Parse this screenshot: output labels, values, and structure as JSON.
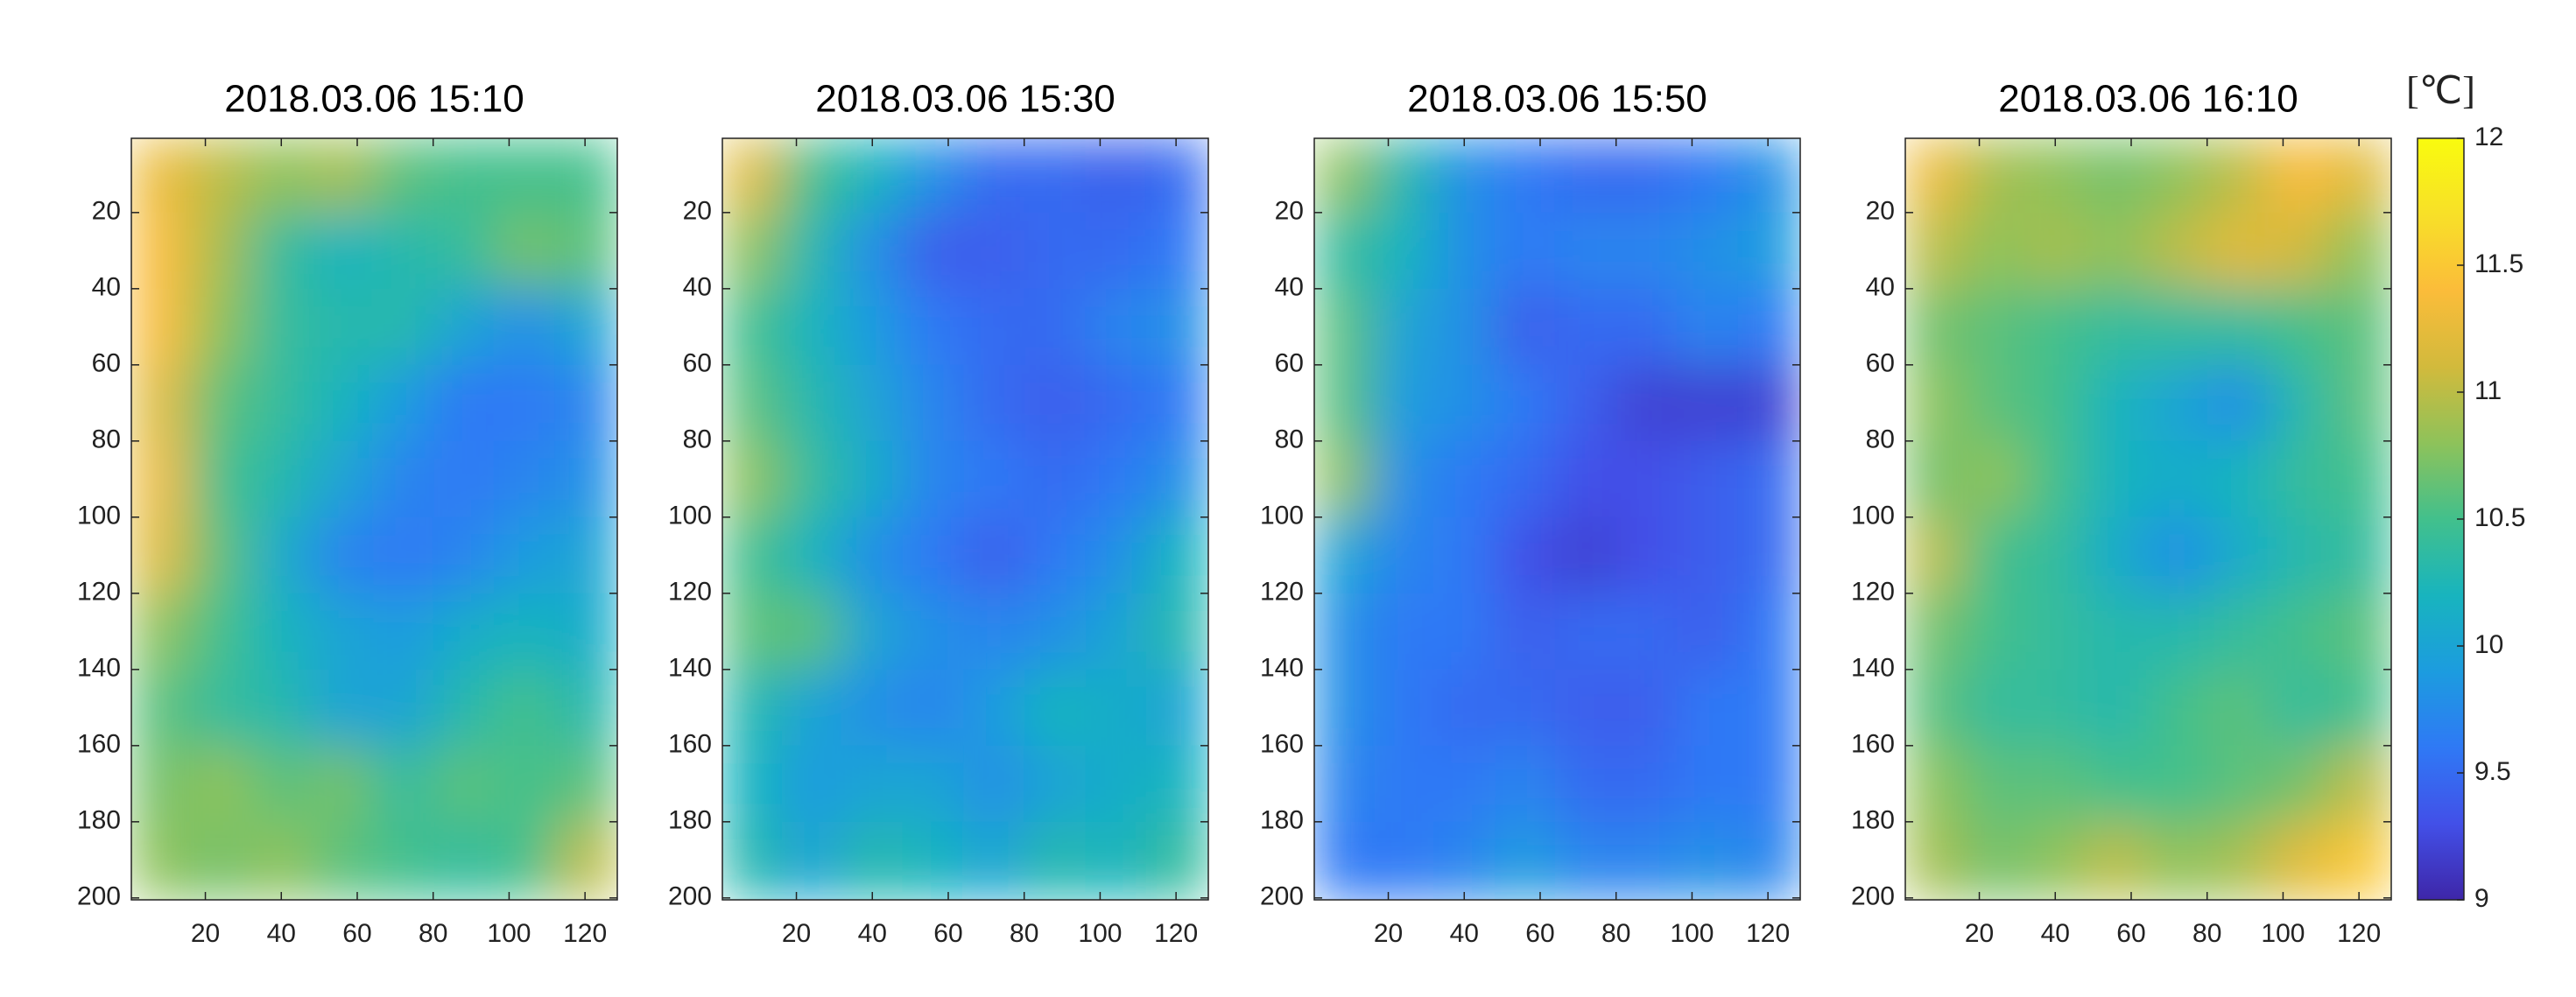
{
  "chart_data": [
    {
      "type": "heatmap",
      "title": "2018.03.06 15:10",
      "x": [
        8,
        24,
        40,
        56,
        72,
        88,
        104,
        120
      ],
      "y": [
        10,
        30,
        50,
        70,
        90,
        110,
        130,
        150,
        170,
        190
      ],
      "z": [
        [
          11.3,
          11.0,
          10.8,
          10.9,
          10.6,
          10.5,
          10.5,
          10.5
        ],
        [
          11.4,
          10.9,
          10.4,
          10.2,
          10.3,
          10.4,
          10.7,
          10.6
        ],
        [
          11.4,
          10.8,
          10.4,
          10.3,
          10.3,
          10.0,
          9.8,
          10.0
        ],
        [
          11.2,
          10.6,
          10.4,
          10.2,
          9.9,
          9.6,
          9.6,
          9.7
        ],
        [
          11.3,
          10.5,
          10.3,
          10.0,
          9.7,
          9.6,
          9.7,
          9.8
        ],
        [
          11.2,
          10.6,
          10.1,
          9.7,
          9.6,
          9.7,
          9.9,
          10.0
        ],
        [
          10.8,
          10.5,
          10.2,
          10.0,
          9.9,
          10.1,
          10.2,
          10.1
        ],
        [
          10.6,
          10.4,
          10.3,
          10.0,
          10.0,
          10.3,
          10.5,
          10.3
        ],
        [
          10.7,
          10.8,
          10.6,
          10.7,
          10.4,
          10.6,
          10.5,
          10.6
        ],
        [
          10.8,
          10.7,
          10.8,
          10.6,
          10.5,
          10.4,
          10.5,
          11.0
        ]
      ],
      "xlim": [
        0.5,
        128.5
      ],
      "ylim": [
        0.5,
        200.5
      ],
      "y_reversed": true,
      "xticks": [
        20,
        40,
        60,
        80,
        100,
        120
      ],
      "yticks": [
        20,
        40,
        60,
        80,
        100,
        120,
        140,
        160,
        180,
        200
      ]
    },
    {
      "type": "heatmap",
      "title": "2018.03.06 15:30",
      "x": [
        8,
        24,
        40,
        56,
        72,
        88,
        104,
        120
      ],
      "y": [
        10,
        30,
        50,
        70,
        90,
        110,
        130,
        150,
        170,
        190
      ],
      "z": [
        [
          11.2,
          10.5,
          10.2,
          9.8,
          9.5,
          9.5,
          9.4,
          9.5
        ],
        [
          10.8,
          10.3,
          9.8,
          9.4,
          9.4,
          9.5,
          9.5,
          9.6
        ],
        [
          10.5,
          10.2,
          9.9,
          9.6,
          9.5,
          9.5,
          9.7,
          9.8
        ],
        [
          10.6,
          10.3,
          10.0,
          9.7,
          9.5,
          9.4,
          9.5,
          9.6
        ],
        [
          10.8,
          10.4,
          10.1,
          9.7,
          9.6,
          9.5,
          9.6,
          9.8
        ],
        [
          10.5,
          10.2,
          9.8,
          9.6,
          9.4,
          9.6,
          9.8,
          10.2
        ],
        [
          10.6,
          10.6,
          10.0,
          9.8,
          9.7,
          9.8,
          10.0,
          10.3
        ],
        [
          10.3,
          10.0,
          9.8,
          9.7,
          9.9,
          10.2,
          10.1,
          10.0
        ],
        [
          10.2,
          9.9,
          10.0,
          10.0,
          9.8,
          10.0,
          10.1,
          10.2
        ],
        [
          10.3,
          10.0,
          10.3,
          10.2,
          10.0,
          10.3,
          10.2,
          10.4
        ]
      ],
      "xlim": [
        0.5,
        128.5
      ],
      "ylim": [
        0.5,
        200.5
      ],
      "y_reversed": true,
      "xticks": [
        20,
        40,
        60,
        80,
        100,
        120
      ],
      "yticks": [
        20,
        40,
        60,
        80,
        100,
        120,
        140,
        160,
        180,
        200
      ]
    },
    {
      "type": "heatmap",
      "title": "2018.03.06 15:50",
      "x": [
        8,
        24,
        40,
        56,
        72,
        88,
        104,
        120
      ],
      "y": [
        10,
        30,
        50,
        70,
        90,
        110,
        130,
        150,
        170,
        190
      ],
      "z": [
        [
          10.8,
          10.3,
          9.8,
          9.6,
          9.5,
          9.5,
          9.6,
          9.8
        ],
        [
          10.4,
          10.2,
          9.8,
          9.6,
          9.7,
          9.7,
          9.8,
          9.9
        ],
        [
          10.6,
          10.0,
          9.8,
          9.4,
          9.5,
          9.5,
          9.7,
          9.6
        ],
        [
          10.6,
          9.9,
          9.8,
          9.6,
          9.4,
          9.2,
          9.2,
          9.2
        ],
        [
          10.8,
          9.8,
          9.6,
          9.5,
          9.3,
          9.3,
          9.4,
          9.5
        ],
        [
          10.0,
          9.7,
          9.6,
          9.3,
          9.2,
          9.3,
          9.4,
          9.5
        ],
        [
          9.8,
          9.6,
          9.6,
          9.4,
          9.5,
          9.5,
          9.4,
          9.6
        ],
        [
          9.8,
          9.6,
          9.5,
          9.5,
          9.4,
          9.4,
          9.6,
          9.6
        ],
        [
          9.7,
          9.6,
          9.6,
          9.7,
          9.5,
          9.5,
          9.6,
          9.6
        ],
        [
          9.6,
          9.6,
          9.7,
          9.9,
          9.7,
          9.7,
          9.8,
          9.7
        ]
      ],
      "xlim": [
        0.5,
        128.5
      ],
      "ylim": [
        0.5,
        200.5
      ],
      "y_reversed": true,
      "xticks": [
        20,
        40,
        60,
        80,
        100,
        120
      ],
      "yticks": [
        20,
        40,
        60,
        80,
        100,
        120,
        140,
        160,
        180,
        200
      ]
    },
    {
      "type": "heatmap",
      "title": "2018.03.06 16:10",
      "x": [
        8,
        24,
        40,
        56,
        72,
        88,
        104,
        120
      ],
      "y": [
        10,
        30,
        50,
        70,
        90,
        110,
        130,
        150,
        170,
        190
      ],
      "z": [
        [
          11.3,
          10.9,
          10.8,
          10.7,
          10.8,
          11.0,
          11.4,
          11.2
        ],
        [
          11.0,
          10.8,
          10.9,
          10.8,
          11.0,
          11.2,
          11.1,
          10.8
        ],
        [
          10.7,
          10.6,
          10.5,
          10.4,
          10.4,
          10.4,
          10.5,
          10.6
        ],
        [
          10.8,
          10.6,
          10.5,
          10.2,
          10.0,
          9.8,
          10.3,
          10.6
        ],
        [
          10.7,
          10.8,
          10.5,
          10.2,
          10.1,
          10.2,
          10.4,
          10.5
        ],
        [
          11.0,
          10.5,
          10.4,
          10.1,
          9.8,
          10.1,
          10.3,
          10.4
        ],
        [
          10.7,
          10.5,
          10.4,
          10.3,
          10.3,
          10.4,
          10.5,
          10.6
        ],
        [
          10.6,
          10.4,
          10.4,
          10.3,
          10.5,
          10.6,
          10.4,
          10.5
        ],
        [
          10.8,
          10.6,
          10.6,
          10.5,
          10.5,
          10.6,
          10.7,
          11.0
        ],
        [
          10.9,
          10.7,
          10.8,
          11.0,
          10.8,
          10.9,
          11.2,
          11.5
        ]
      ],
      "xlim": [
        0.5,
        128.5
      ],
      "ylim": [
        0.5,
        200.5
      ],
      "y_reversed": true,
      "xticks": [
        20,
        40,
        60,
        80,
        100,
        120
      ],
      "yticks": [
        20,
        40,
        60,
        80,
        100,
        120,
        140,
        160,
        180,
        200
      ]
    }
  ],
  "colorbar": {
    "label": "[℃]",
    "clim": [
      9,
      12
    ],
    "ticks": [
      9,
      9.5,
      10,
      10.5,
      11,
      11.5,
      12
    ],
    "colormap": [
      "#3e26a8",
      "#4250e8",
      "#2f79f5",
      "#1c9cdf",
      "#18b4be",
      "#42c08c",
      "#8ec25a",
      "#d2ba3c",
      "#fbbc3a",
      "#f8e028",
      "#f9fb0e"
    ]
  }
}
